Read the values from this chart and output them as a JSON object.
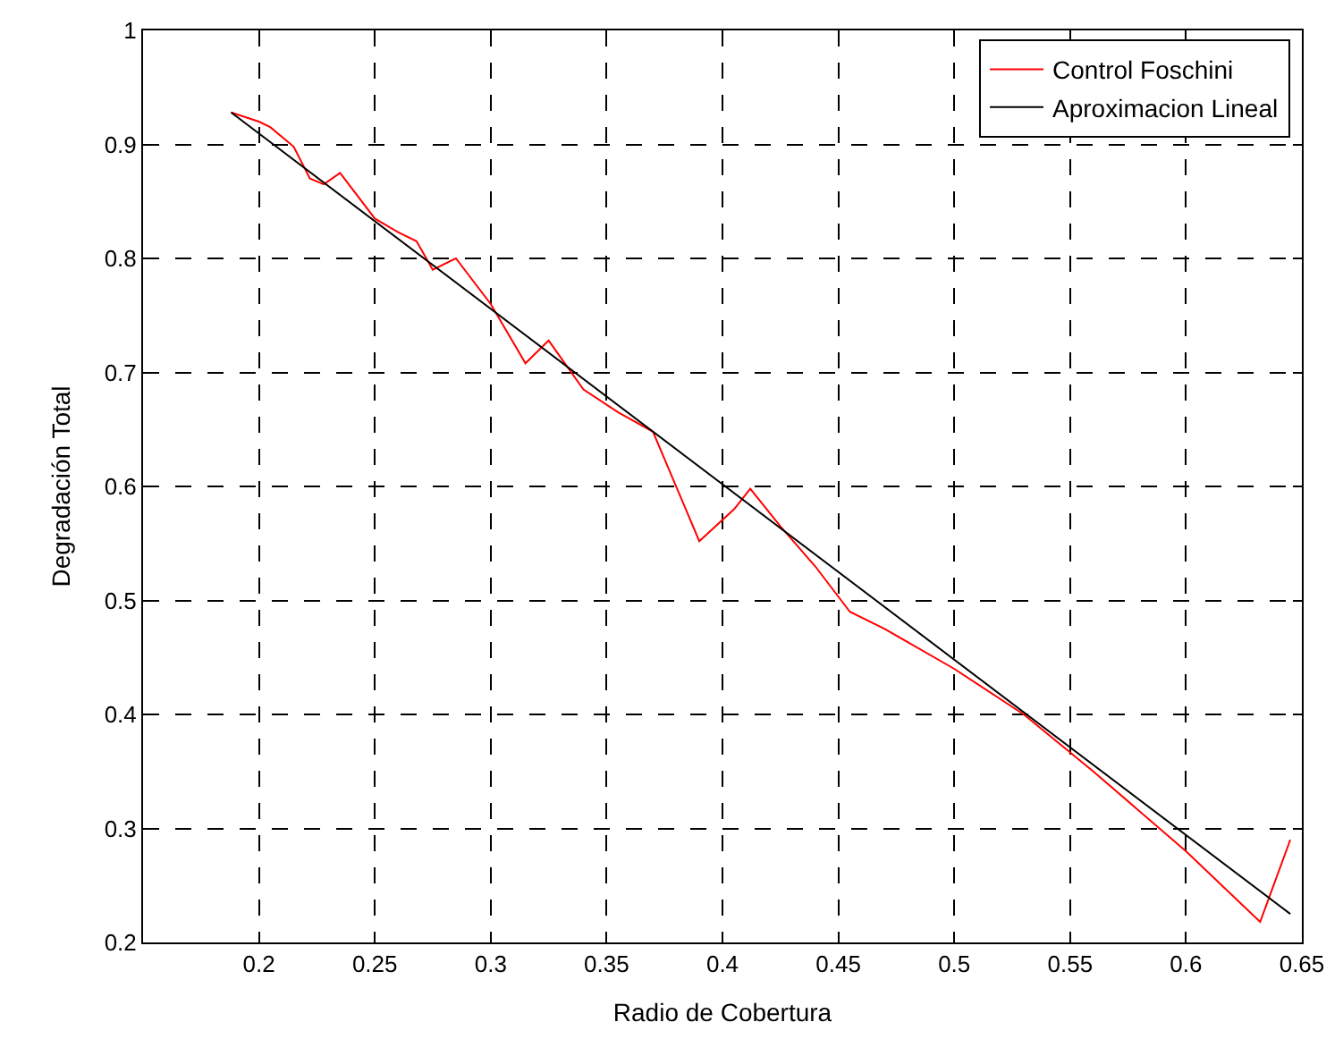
{
  "chart_data": {
    "type": "line",
    "xlabel": "Radio de Cobertura",
    "ylabel": "Degradación Total",
    "xlim": [
      0.15,
      0.65
    ],
    "xticks": [
      {
        "value": 0.15,
        "label": null
      },
      0.2,
      0.25,
      0.3,
      0.35,
      0.4,
      0.45,
      0.5,
      0.55,
      0.6,
      0.65
    ],
    "ylim": [
      0.2,
      1
    ],
    "yticks": [
      0.2,
      0.3,
      0.4,
      0.5,
      0.6,
      0.7,
      0.8,
      0.9,
      1
    ],
    "grid": true,
    "legend": "top right",
    "marker": "none",
    "line_style": "solid",
    "series": [
      {
        "name": "Control Foschini",
        "color": "#ff0000",
        "x": [
          0.188,
          0.2,
          0.205,
          0.215,
          0.222,
          0.228,
          0.235,
          0.25,
          0.26,
          0.268,
          0.275,
          0.285,
          0.3,
          0.315,
          0.325,
          0.34,
          0.355,
          0.37,
          0.39,
          0.405,
          0.412,
          0.425,
          0.44,
          0.455,
          0.47,
          0.5,
          0.53,
          0.56,
          0.6,
          0.632,
          0.645
        ],
        "values": [
          0.928,
          0.92,
          0.915,
          0.898,
          0.87,
          0.865,
          0.875,
          0.835,
          0.823,
          0.815,
          0.79,
          0.8,
          0.76,
          0.708,
          0.728,
          0.685,
          0.665,
          0.648,
          0.552,
          0.58,
          0.598,
          0.565,
          0.53,
          0.49,
          0.475,
          0.44,
          0.4,
          0.35,
          0.28,
          0.218,
          0.29
        ]
      },
      {
        "name": "Aproximacion Lineal",
        "color": "#000000",
        "x": [
          0.188,
          0.645
        ],
        "values": [
          0.928,
          0.225
        ]
      }
    ]
  }
}
